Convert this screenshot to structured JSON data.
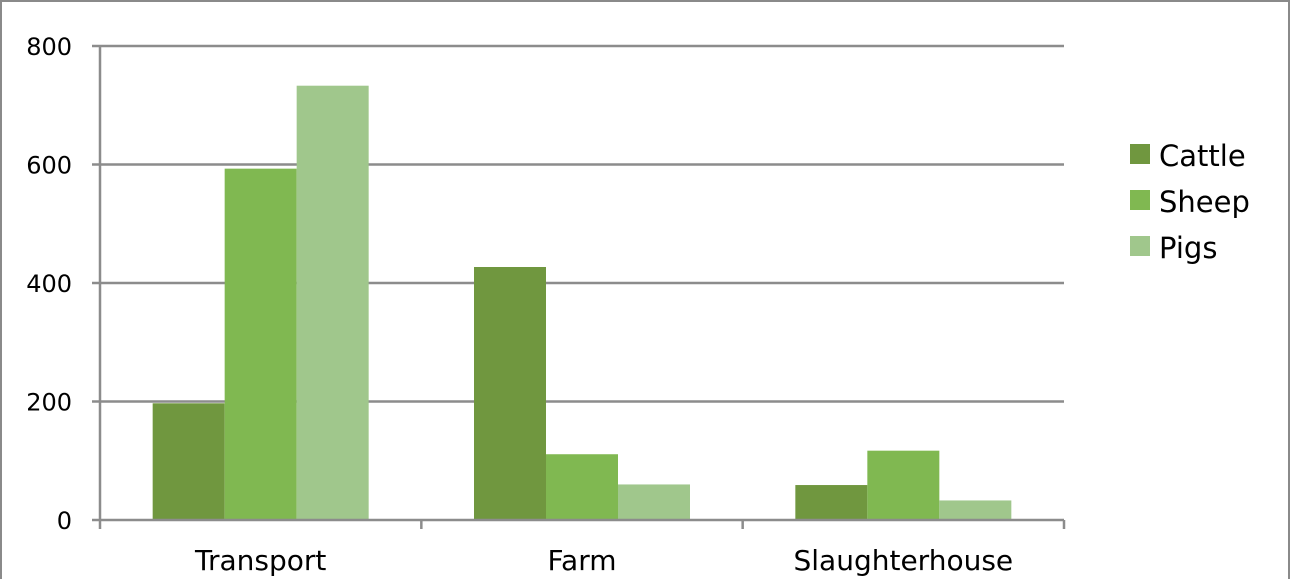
{
  "chart_data": {
    "type": "bar",
    "categories": [
      "Transport",
      "Farm",
      "Slaughterhouse"
    ],
    "series": [
      {
        "name": "Cattle",
        "values": [
          197,
          427,
          59
        ],
        "color": "#70973f"
      },
      {
        "name": "Sheep",
        "values": [
          593,
          111,
          117
        ],
        "color": "#80b851"
      },
      {
        "name": "Pigs",
        "values": [
          733,
          60,
          33
        ],
        "color": "#a0c78c"
      }
    ],
    "yticks": [
      "0",
      "200",
      "400",
      "600",
      "800"
    ],
    "ylim": [
      0,
      800
    ],
    "grid": true,
    "legend_position": "right",
    "title": "",
    "xlabel": "",
    "ylabel": ""
  }
}
